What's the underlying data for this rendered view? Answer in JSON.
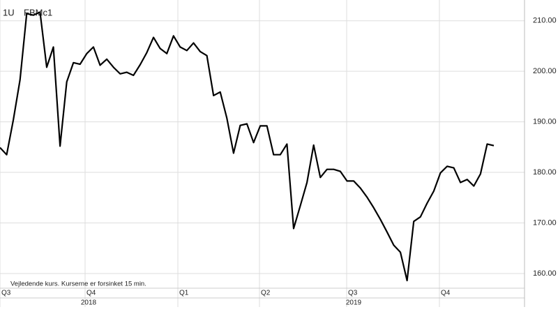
{
  "chart_data": {
    "type": "line",
    "symbol": [
      "1U",
      "FBMc1"
    ],
    "note": "Vejledende kurs. Kurserne er forsinket 15 min.",
    "quarters": [
      "Q3",
      "Q4",
      "Q1",
      "Q2",
      "Q3",
      "Q4"
    ],
    "years": [
      "2018",
      "2019"
    ],
    "categories": [
      null,
      null,
      null,
      null,
      null,
      null,
      null,
      null,
      null,
      null,
      null,
      null,
      null,
      null,
      null,
      null,
      null,
      null,
      null,
      null,
      null,
      null,
      null,
      null,
      null,
      null,
      null,
      null,
      null,
      null,
      null,
      null,
      null,
      null,
      null,
      null,
      null,
      null,
      null,
      null,
      null,
      null,
      null,
      null,
      null,
      null,
      null,
      null,
      null,
      null,
      null,
      null,
      null,
      null,
      null,
      null,
      null,
      null,
      null,
      null,
      null,
      null,
      null,
      null,
      null,
      null,
      null,
      null,
      null,
      null,
      null,
      null,
      null,
      null,
      null
    ],
    "series": [
      {
        "name": "FBMc1",
        "color": "#000000",
        "values": [
          184.9,
          183.5,
          190.4,
          198.3,
          211.4,
          211.1,
          211.7,
          200.8,
          204.8,
          185.2,
          197.9,
          201.7,
          201.4,
          203.5,
          204.8,
          201.2,
          202.4,
          200.8,
          199.5,
          199.8,
          199.2,
          201.3,
          203.7,
          206.7,
          204.5,
          203.5,
          207.0,
          204.8,
          204.1,
          205.6,
          203.9,
          203.1,
          195.2,
          195.9,
          190.7,
          183.8,
          189.3,
          189.6,
          185.9,
          189.2,
          189.2,
          183.5,
          183.5,
          185.6,
          168.9,
          173.4,
          178.0,
          185.4,
          179.0,
          180.6,
          180.6,
          180.2,
          178.3,
          178.3,
          176.9,
          175.1,
          173.0,
          170.7,
          168.2,
          165.6,
          164.2,
          158.6,
          170.3,
          171.2,
          173.9,
          176.3,
          179.9,
          181.2,
          180.9,
          178.0,
          178.6,
          177.3,
          179.7,
          185.6,
          185.3
        ]
      }
    ],
    "ylim": [
      158.2,
      214.1
    ],
    "yticks": [
      {
        "value": 160,
        "label": "160.00"
      },
      {
        "value": 170,
        "label": "170.00"
      },
      {
        "value": 180,
        "label": "180.00"
      },
      {
        "value": 190,
        "label": "190.00"
      },
      {
        "value": 200,
        "label": "200.00"
      },
      {
        "value": 210,
        "label": "210.00"
      }
    ],
    "grid": true
  }
}
